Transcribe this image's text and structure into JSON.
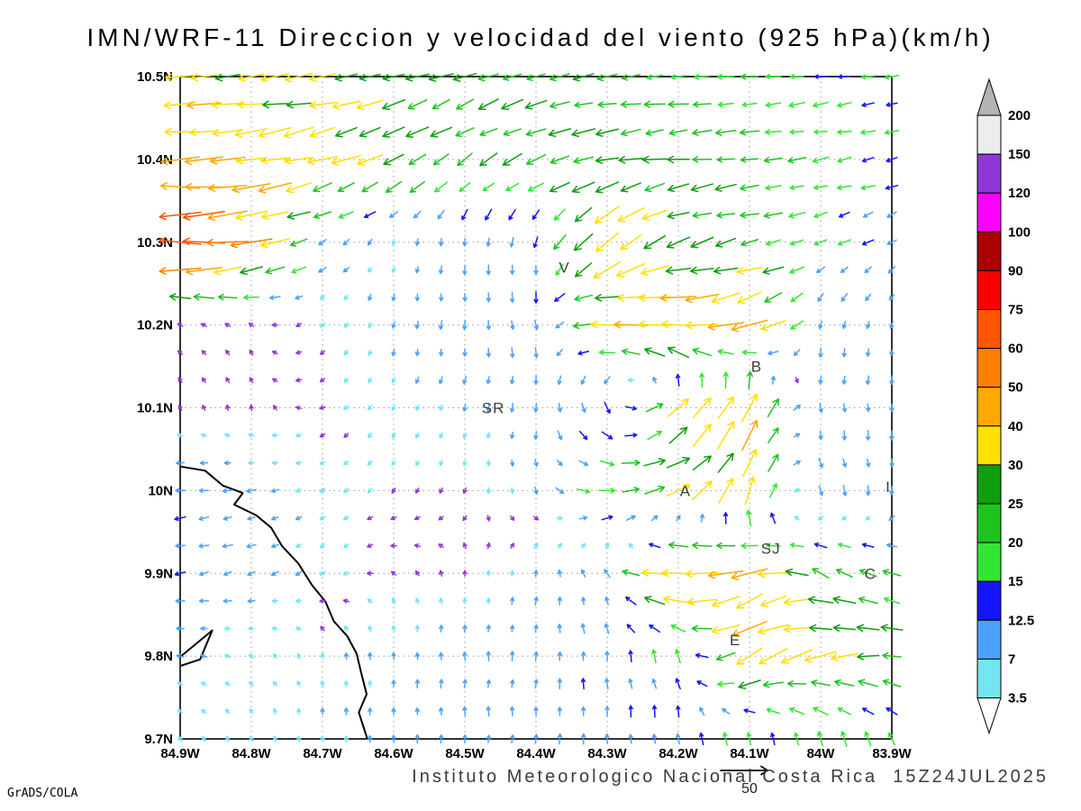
{
  "title": "IMN/WRF-11 Direccion y velocidad del viento (925 hPa)(km/h)",
  "footer": {
    "institute": "Instituto Meteorologico Nacional Costa Rica  15Z24JUL2025",
    "stamp": "GrADS/COLA",
    "reference_vector": {
      "label": "50",
      "speed": 50
    }
  },
  "chart_data": {
    "type": "vector_field",
    "model": "IMN/WRF-11",
    "variable": "Direccion y velocidad del viento",
    "level": "925 hPa",
    "units": "km/h",
    "valid_time": "15Z24JUL2025",
    "x_axis": {
      "labels": [
        "84.9W",
        "84.8W",
        "84.7W",
        "84.6W",
        "84.5W",
        "84.4W",
        "84.3W",
        "84.2W",
        "84.1W",
        "84W",
        "83.9W"
      ],
      "lon_start": 84.9,
      "lon_end": 83.9
    },
    "y_axis": {
      "labels": [
        "10.5N",
        "10.4N",
        "10.3N",
        "10.2N",
        "10.1N",
        "10N",
        "9.9N",
        "9.8N",
        "9.7N"
      ],
      "lat_start": 10.5,
      "lat_end": 9.7
    },
    "grid_on": true,
    "colorbar": {
      "labels": [
        "200",
        "150",
        "120",
        "100",
        "90",
        "75",
        "60",
        "50",
        "40",
        "30",
        "25",
        "20",
        "15",
        "12.5",
        "7",
        "3.5"
      ],
      "levels": [
        3.5,
        7,
        12.5,
        15,
        20,
        25,
        30,
        40,
        50,
        60,
        75,
        90,
        100,
        120,
        150,
        200
      ],
      "band_colors_top_to_bottom": [
        "#ededed",
        "#8d38d6",
        "#ff00ff",
        "#aa0000",
        "#fa0000",
        "#ff5500",
        "#ff8000",
        "#ffa800",
        "#ffe000",
        "#0e9e0e",
        "#1ec41e",
        "#33e633",
        "#1414ff",
        "#4da2ff",
        "#73e6f2"
      ],
      "over_color": "#b3b3b3",
      "under_color": "#ffffff",
      "arrow_colors_ascending": [
        "#8d38d6",
        "#73e6f2",
        "#4da2ff",
        "#1414ff",
        "#33e633",
        "#1ec41e",
        "#0e9e0e",
        "#ffe000",
        "#ffa800",
        "#ff8000",
        "#ff5500",
        "#fa0000",
        "#aa0000",
        "#ff00ff",
        "#8d38d6",
        "#ededed",
        "#b3b3b3"
      ]
    },
    "grid": {
      "direction_convention": "math degrees: 0=toward East, 90=toward North; vector points toward",
      "lons": [
        84.9,
        84.8,
        84.7,
        84.6,
        84.5,
        84.4,
        84.3,
        84.2,
        84.1,
        84.0,
        83.9
      ],
      "lats": [
        10.5,
        10.4,
        10.3,
        10.2,
        10.1,
        10.0,
        9.9,
        9.8,
        9.7
      ],
      "speed": [
        [
          35,
          32,
          30,
          28,
          26,
          25,
          22,
          20,
          18,
          16,
          15
        ],
        [
          42,
          40,
          34,
          28,
          22,
          25,
          28,
          25,
          22,
          18,
          15
        ],
        [
          75,
          45,
          12,
          6,
          10,
          12,
          38,
          28,
          22,
          15,
          12
        ],
        [
          3,
          3,
          4,
          8,
          10,
          12,
          35,
          45,
          40,
          10,
          8
        ],
        [
          3,
          3,
          3,
          6,
          8,
          10,
          15,
          30,
          40,
          10,
          10
        ],
        [
          12,
          10,
          5,
          3,
          3,
          8,
          20,
          30,
          35,
          12,
          10
        ],
        [
          12,
          10,
          6,
          3,
          3,
          8,
          10,
          45,
          40,
          25,
          20
        ],
        [
          8,
          5,
          6,
          8,
          10,
          10,
          12,
          15,
          40,
          35,
          25
        ],
        [
          4,
          4,
          7,
          8,
          10,
          10,
          12,
          12,
          15,
          18,
          15
        ]
      ],
      "direction_deg": [
        [
          185,
          186,
          190,
          195,
          200,
          195,
          188,
          185,
          185,
          186,
          188
        ],
        [
          183,
          188,
          196,
          208,
          215,
          202,
          190,
          186,
          186,
          190,
          195
        ],
        [
          180,
          192,
          212,
          250,
          268,
          258,
          222,
          200,
          192,
          202,
          210
        ],
        [
          150,
          140,
          230,
          260,
          270,
          282,
          172,
          176,
          200,
          258,
          250
        ],
        [
          120,
          100,
          200,
          240,
          252,
          262,
          300,
          45,
          60,
          275,
          270
        ],
        [
          185,
          192,
          212,
          232,
          250,
          290,
          0,
          20,
          70,
          290,
          270
        ],
        [
          190,
          200,
          222,
          150,
          90,
          80,
          120,
          180,
          200,
          152,
          160
        ],
        [
          168,
          150,
          100,
          90,
          90,
          85,
          95,
          110,
          210,
          190,
          175
        ],
        [
          120,
          112,
          95,
          90,
          90,
          88,
          92,
          95,
          100,
          110,
          120
        ]
      ]
    },
    "cities": [
      {
        "label": "V",
        "lon": 84.36,
        "lat": 10.27
      },
      {
        "label": "B",
        "lon": 84.09,
        "lat": 10.15
      },
      {
        "label": "SR",
        "lon": 84.46,
        "lat": 10.1
      },
      {
        "label": "A",
        "lon": 84.19,
        "lat": 10.0
      },
      {
        "label": "I",
        "lon": 83.905,
        "lat": 10.005
      },
      {
        "label": "SJ",
        "lon": 84.07,
        "lat": 9.93
      },
      {
        "label": "C",
        "lon": 83.93,
        "lat": 9.9
      },
      {
        "label": "E",
        "lon": 84.12,
        "lat": 9.82
      }
    ],
    "coastline": [
      [
        [
          84.9,
          10.029
        ],
        [
          84.865,
          10.024
        ],
        [
          84.84,
          10.006
        ],
        [
          84.812,
          9.997
        ],
        [
          84.824,
          9.983
        ],
        [
          84.793,
          9.97
        ],
        [
          84.772,
          9.955
        ],
        [
          84.757,
          9.933
        ],
        [
          84.734,
          9.912
        ],
        [
          84.715,
          9.886
        ],
        [
          84.696,
          9.866
        ],
        [
          84.684,
          9.842
        ],
        [
          84.665,
          9.824
        ],
        [
          84.652,
          9.803
        ],
        [
          84.646,
          9.781
        ],
        [
          84.638,
          9.754
        ],
        [
          84.649,
          9.732
        ],
        [
          84.64,
          9.708
        ],
        [
          84.637,
          9.7
        ]
      ],
      [
        [
          84.9,
          9.799
        ],
        [
          84.855,
          9.831
        ],
        [
          84.872,
          9.796
        ],
        [
          84.9,
          9.788
        ]
      ]
    ]
  }
}
